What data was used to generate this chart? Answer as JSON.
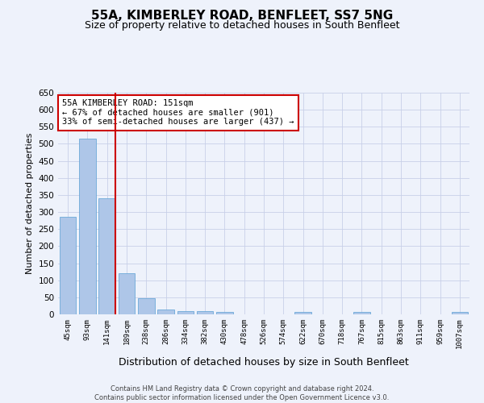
{
  "title": "55A, KIMBERLEY ROAD, BENFLEET, SS7 5NG",
  "subtitle": "Size of property relative to detached houses in South Benfleet",
  "xlabel": "Distribution of detached houses by size in South Benfleet",
  "ylabel": "Number of detached properties",
  "categories": [
    "45sqm",
    "93sqm",
    "141sqm",
    "189sqm",
    "238sqm",
    "286sqm",
    "334sqm",
    "382sqm",
    "430sqm",
    "478sqm",
    "526sqm",
    "574sqm",
    "622sqm",
    "670sqm",
    "718sqm",
    "767sqm",
    "815sqm",
    "863sqm",
    "911sqm",
    "959sqm",
    "1007sqm"
  ],
  "values": [
    285,
    515,
    340,
    120,
    48,
    15,
    10,
    10,
    7,
    0,
    0,
    0,
    7,
    0,
    0,
    7,
    0,
    0,
    0,
    0,
    7
  ],
  "bar_color": "#aec6e8",
  "bar_edge_color": "#5a9fd4",
  "reference_line_index": 2,
  "reference_line_color": "#cc0000",
  "ylim": [
    0,
    650
  ],
  "yticks": [
    0,
    50,
    100,
    150,
    200,
    250,
    300,
    350,
    400,
    450,
    500,
    550,
    600,
    650
  ],
  "annotation_text": "55A KIMBERLEY ROAD: 151sqm\n← 67% of detached houses are smaller (901)\n33% of semi-detached houses are larger (437) →",
  "annotation_box_color": "#ffffff",
  "annotation_box_edge": "#cc0000",
  "background_color": "#eef2fb",
  "grid_color": "#c8d0e8",
  "footer_text": "Contains HM Land Registry data © Crown copyright and database right 2024.\nContains public sector information licensed under the Open Government Licence v3.0.",
  "title_fontsize": 11,
  "subtitle_fontsize": 9,
  "ylabel_fontsize": 8,
  "xlabel_fontsize": 9,
  "annotation_fontsize": 7.5
}
